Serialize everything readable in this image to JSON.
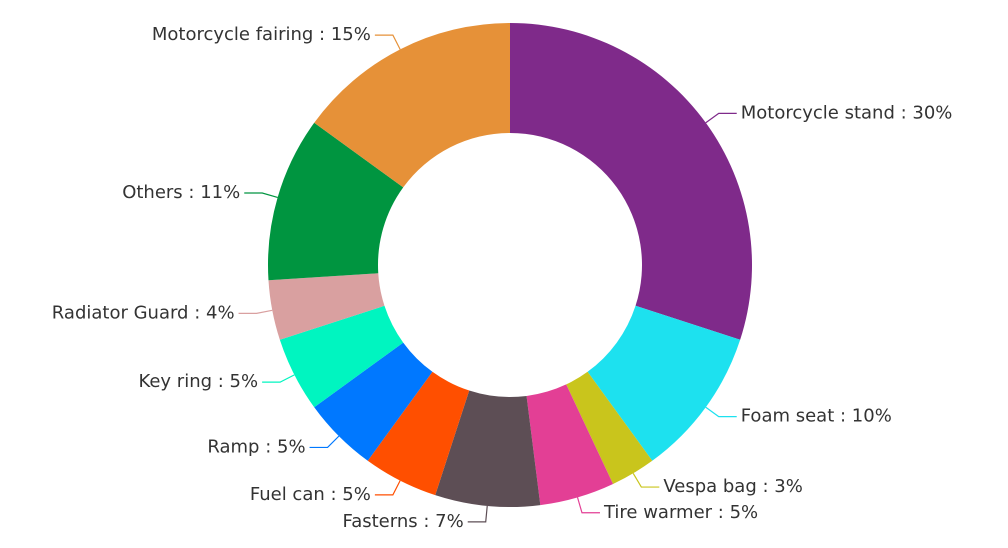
{
  "chart_data": {
    "type": "donut",
    "categories": [
      "Motorcycle stand",
      "Foam seat",
      "Vespa bag",
      "Tire warmer",
      "Fasterns",
      "Fuel can",
      "Ramp",
      "Key ring",
      "Radiator Guard",
      "Others",
      "Motorcycle fairing"
    ],
    "values": [
      30,
      10,
      3,
      5,
      7,
      5,
      5,
      5,
      4,
      11,
      15
    ],
    "value_labels": [
      "30%",
      "10%",
      "3%",
      "5%",
      "7%",
      "5%",
      "5%",
      "5%",
      "4%",
      "11%",
      "15%"
    ],
    "label_separator": " : ",
    "colors": [
      "#7f2a8a",
      "#1de1ef",
      "#c9c51c",
      "#e33f95",
      "#5d4e55",
      "#ff4f00",
      "#0078ff",
      "#00f5c0",
      "#d9a0a0",
      "#009540",
      "#e69138"
    ]
  }
}
